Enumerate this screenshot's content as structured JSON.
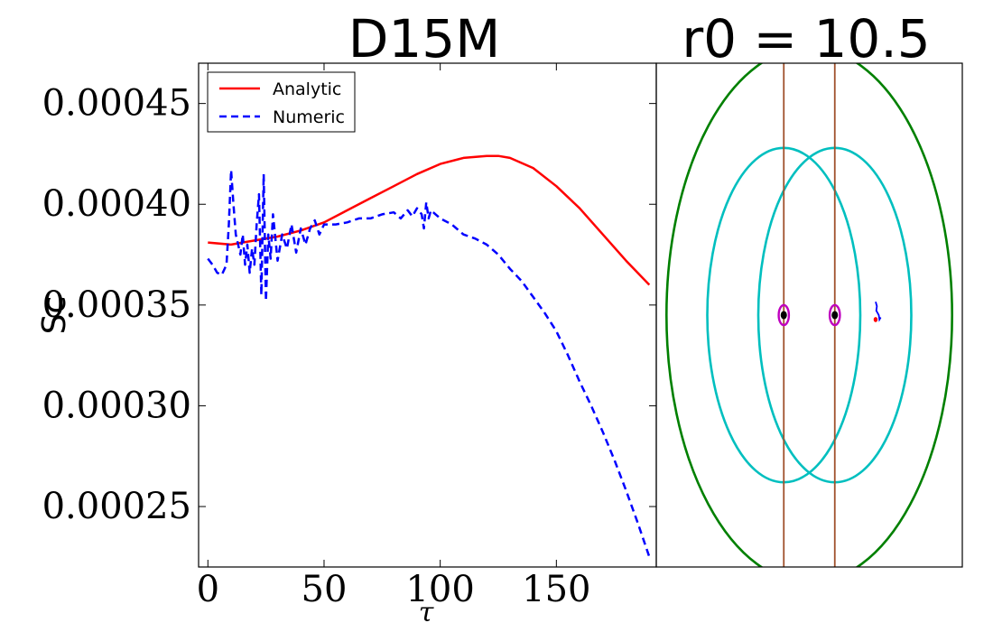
{
  "chart_data": [
    {
      "type": "line",
      "title": "D15M",
      "xlabel": "τ",
      "ylabel": "Sc",
      "xlim": [
        -4,
        193
      ],
      "ylim": [
        0.00022,
        0.00047
      ],
      "xticks": [
        0,
        50,
        100,
        150
      ],
      "xtick_labels": [
        "0",
        "50",
        "100",
        "150"
      ],
      "yticks": [
        0.00025,
        0.0003,
        0.00035,
        0.0004,
        0.00045
      ],
      "ytick_labels": [
        "0.00025",
        "0.00030",
        "0.00035",
        "0.00040",
        "0.00045"
      ],
      "legend_position": "top-left",
      "series": [
        {
          "name": "Analytic",
          "color": "#ff0000",
          "style": "solid",
          "x": [
            0,
            10,
            20,
            30,
            40,
            50,
            60,
            70,
            80,
            90,
            100,
            110,
            120,
            125,
            130,
            140,
            150,
            160,
            170,
            180,
            190
          ],
          "y": [
            0.000381,
            0.00038,
            0.000382,
            0.000384,
            0.000387,
            0.000391,
            0.000397,
            0.000403,
            0.000409,
            0.000415,
            0.00042,
            0.000423,
            0.000424,
            0.000424,
            0.000423,
            0.000418,
            0.000409,
            0.000398,
            0.000385,
            0.000372,
            0.00036
          ]
        },
        {
          "name": "Numeric",
          "color": "#0000ff",
          "style": "dashed",
          "x": [
            0,
            2,
            4,
            6,
            8,
            9,
            10,
            11,
            12,
            13,
            14,
            15,
            16,
            17,
            18,
            19,
            20,
            21,
            22,
            23,
            24,
            25,
            26,
            27,
            28,
            30,
            32,
            34,
            36,
            38,
            40,
            42,
            44,
            46,
            48,
            50,
            55,
            60,
            65,
            70,
            75,
            80,
            83,
            86,
            88,
            90,
            92,
            93,
            94,
            95,
            96,
            98,
            100,
            105,
            110,
            115,
            120,
            125,
            130,
            135,
            140,
            145,
            150,
            155,
            160,
            165,
            170,
            175,
            180,
            185,
            190
          ],
          "y": [
            0.000373,
            0.00037,
            0.000366,
            0.000365,
            0.00037,
            0.00039,
            0.000417,
            0.0004,
            0.000385,
            0.00038,
            0.000375,
            0.000385,
            0.00037,
            0.00038,
            0.000366,
            0.000378,
            0.00037,
            0.00039,
            0.000405,
            0.000355,
            0.000415,
            0.000352,
            0.000385,
            0.000373,
            0.000395,
            0.000372,
            0.000385,
            0.000378,
            0.00039,
            0.000376,
            0.000388,
            0.00038,
            0.000388,
            0.000392,
            0.000385,
            0.00039,
            0.00039,
            0.000391,
            0.000393,
            0.000393,
            0.000395,
            0.000396,
            0.000393,
            0.000397,
            0.000394,
            0.000398,
            0.000395,
            0.000388,
            0.000401,
            0.000393,
            0.000397,
            0.000395,
            0.000393,
            0.00039,
            0.000385,
            0.000383,
            0.00038,
            0.000375,
            0.000368,
            0.000362,
            0.000354,
            0.000346,
            0.000337,
            0.000325,
            0.000312,
            0.0003,
            0.000287,
            0.000273,
            0.000258,
            0.000242,
            0.000225
          ]
        }
      ]
    },
    {
      "type": "diagram",
      "title": "r0 = 10.5",
      "xlim": [
        -1.2,
        1.2
      ],
      "ylim": [
        -1.13,
        1.13
      ],
      "ellipses": [
        {
          "name": "outer-ellipse",
          "cx": 0,
          "cy": 0,
          "rx": 1.12,
          "ry": 1.2,
          "color": "#008000"
        },
        {
          "name": "left-ellipse",
          "cx": -0.2,
          "cy": 0,
          "rx": 0.6,
          "ry": 0.75,
          "color": "#00bfbf"
        },
        {
          "name": "right-ellipse",
          "cx": 0.2,
          "cy": 0,
          "rx": 0.6,
          "ry": 0.75,
          "color": "#00bfbf"
        },
        {
          "name": "left-marker-ring",
          "cx": -0.2,
          "cy": 0,
          "rx": 0.04,
          "ry": 0.045,
          "color": "#bf00bf"
        },
        {
          "name": "right-marker-ring",
          "cx": 0.2,
          "cy": 0,
          "rx": 0.04,
          "ry": 0.045,
          "color": "#bf00bf"
        }
      ],
      "points": [
        {
          "name": "left-dot",
          "x": -0.2,
          "y": 0,
          "color": "#000000"
        },
        {
          "name": "right-dot",
          "x": 0.2,
          "y": 0,
          "color": "#000000"
        },
        {
          "name": "red-dot",
          "x": 0.52,
          "y": -0.02,
          "color": "#ff0000"
        }
      ],
      "vlines": [
        {
          "name": "left-vline",
          "x": -0.2,
          "color": "#a0522d"
        },
        {
          "name": "right-vline",
          "x": 0.2,
          "color": "#a0522d"
        }
      ],
      "trajectory": {
        "name": "small-trajectory",
        "color": "#0000ff",
        "x": [
          0.52,
          0.53,
          0.525,
          0.535,
          0.545,
          0.55,
          0.56
        ],
        "y": [
          0.06,
          0.04,
          0.02,
          0.01,
          0.0,
          -0.02,
          -0.01
        ]
      }
    }
  ]
}
